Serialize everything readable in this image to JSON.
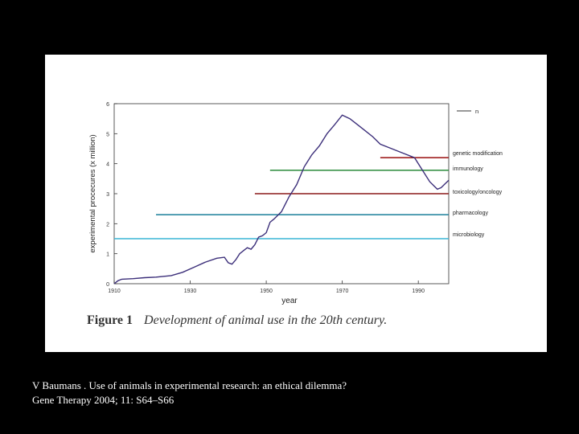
{
  "chart_data": {
    "type": "line",
    "title": "Development of animal use in the 20th century.",
    "figure_label": "Figure 1",
    "xlabel": "year",
    "ylabel": "experimental procecures (x million)",
    "xlim": [
      1910,
      1998
    ],
    "ylim": [
      0,
      6
    ],
    "x_ticks": [
      1910,
      1930,
      1950,
      1970,
      1990
    ],
    "y_ticks": [
      0,
      1,
      2,
      3,
      4,
      5,
      6
    ],
    "series": [
      {
        "name": "n",
        "color": "#3c2f7a",
        "points": [
          [
            1910,
            0.0
          ],
          [
            1911,
            0.1
          ],
          [
            1912,
            0.15
          ],
          [
            1915,
            0.17
          ],
          [
            1918,
            0.2
          ],
          [
            1921,
            0.22
          ],
          [
            1925,
            0.27
          ],
          [
            1928,
            0.38
          ],
          [
            1931,
            0.55
          ],
          [
            1934,
            0.72
          ],
          [
            1937,
            0.85
          ],
          [
            1939,
            0.88
          ],
          [
            1940,
            0.7
          ],
          [
            1941,
            0.65
          ],
          [
            1942,
            0.8
          ],
          [
            1943,
            1.0
          ],
          [
            1944,
            1.1
          ],
          [
            1945,
            1.2
          ],
          [
            1946,
            1.15
          ],
          [
            1947,
            1.3
          ],
          [
            1948,
            1.55
          ],
          [
            1949,
            1.6
          ],
          [
            1950,
            1.7
          ],
          [
            1951,
            2.05
          ],
          [
            1952,
            2.15
          ],
          [
            1954,
            2.4
          ],
          [
            1956,
            2.9
          ],
          [
            1958,
            3.3
          ],
          [
            1960,
            3.9
          ],
          [
            1962,
            4.3
          ],
          [
            1964,
            4.6
          ],
          [
            1966,
            5.0
          ],
          [
            1968,
            5.3
          ],
          [
            1970,
            5.62
          ],
          [
            1972,
            5.5
          ],
          [
            1974,
            5.3
          ],
          [
            1976,
            5.1
          ],
          [
            1978,
            4.9
          ],
          [
            1980,
            4.65
          ],
          [
            1983,
            4.5
          ],
          [
            1986,
            4.35
          ],
          [
            1989,
            4.2
          ],
          [
            1991,
            3.8
          ],
          [
            1993,
            3.4
          ],
          [
            1995,
            3.15
          ],
          [
            1996,
            3.2
          ],
          [
            1998,
            3.45
          ]
        ]
      }
    ],
    "reference_lines": [
      {
        "label": "genetic modification",
        "y": 4.2,
        "x_start": 1980,
        "color": "#a02020"
      },
      {
        "label": "immunology",
        "y": 3.78,
        "x_start": 1951,
        "color": "#2a8a3a"
      },
      {
        "label": "toxicology/oncology",
        "y": 3.0,
        "x_start": 1947,
        "color": "#8b1a1a"
      },
      {
        "label": "pharmacology",
        "y": 2.3,
        "x_start": 1921,
        "color": "#1a7f9a"
      },
      {
        "label": "microbiology",
        "y": 1.5,
        "x_start": 1910,
        "color": "#3ab5d6"
      }
    ],
    "legend": "top-right"
  },
  "citation": {
    "line1": "V Baumans . Use of animals in experimental research: an ethical dilemma?",
    "line2": "Gene Therapy 2004; 11: S64–S66"
  }
}
